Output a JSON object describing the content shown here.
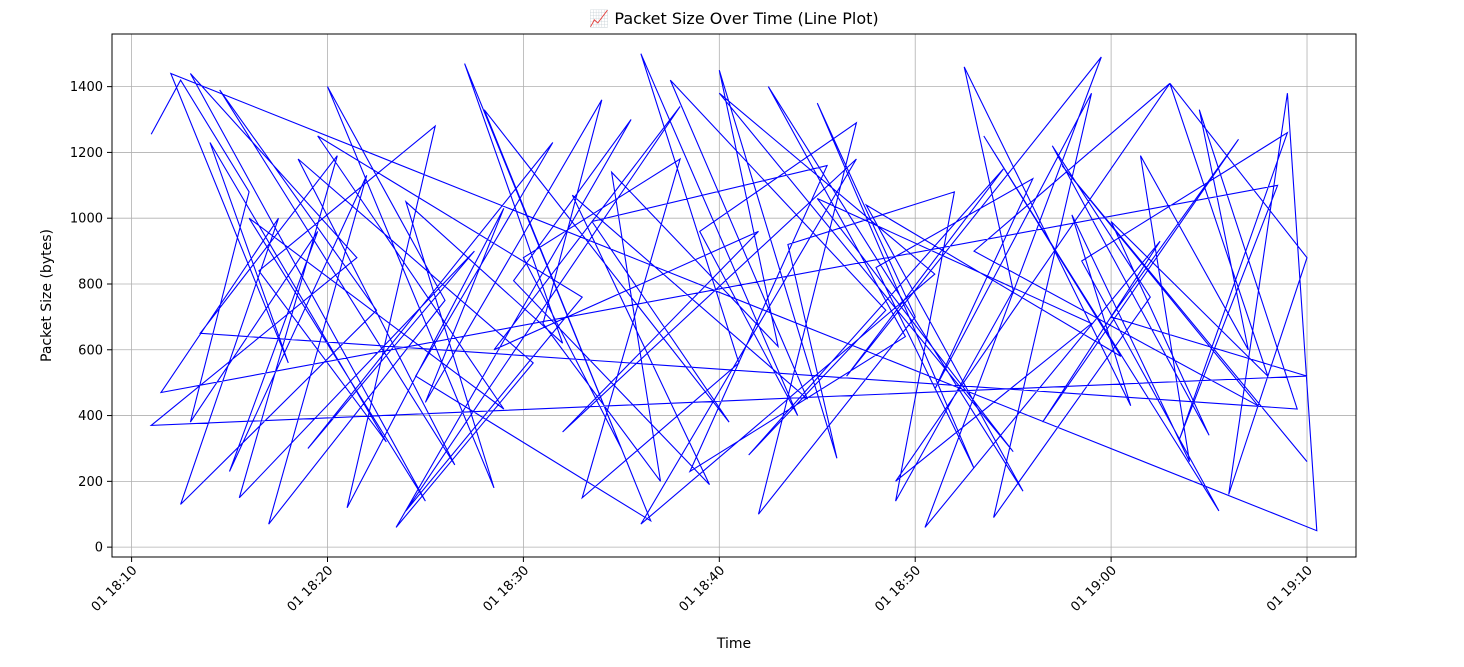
{
  "chart_data": {
    "type": "line",
    "title": "📈 Packet Size Over Time (Line Plot)",
    "xlabel": "Time",
    "ylabel": "Packet Size (bytes)",
    "ylim": [
      -30,
      1560
    ],
    "xlim": [
      "2024-01-01T18:09:00",
      "2024-01-01T19:12:30"
    ],
    "x_tick_labels": [
      "01 18:10",
      "01 18:20",
      "01 18:30",
      "01 18:40",
      "01 18:50",
      "01 19:00",
      "01 19:10"
    ],
    "y_ticks": [
      0,
      200,
      400,
      600,
      800,
      1000,
      1200,
      1400
    ],
    "grid": true,
    "series": [
      {
        "color": "#0000ff",
        "points": [
          [
            "18:11:00",
            1255
          ],
          [
            "18:12:30",
            1420
          ],
          [
            "18:16:00",
            1080
          ],
          [
            "18:13:00",
            380
          ],
          [
            "18:19:30",
            960
          ],
          [
            "18:15:00",
            230
          ],
          [
            "18:22:00",
            1130
          ],
          [
            "18:17:00",
            70
          ],
          [
            "18:26:00",
            750
          ],
          [
            "18:20:00",
            1400
          ],
          [
            "18:28:30",
            180
          ],
          [
            "18:24:00",
            1050
          ],
          [
            "18:32:00",
            620
          ],
          [
            "18:27:00",
            1470
          ],
          [
            "18:35:00",
            300
          ],
          [
            "18:30:00",
            880
          ],
          [
            "18:38:00",
            1180
          ],
          [
            "18:33:00",
            150
          ],
          [
            "18:41:00",
            560
          ],
          [
            "18:36:00",
            1500
          ],
          [
            "18:44:00",
            400
          ],
          [
            "18:39:00",
            960
          ],
          [
            "18:47:00",
            1290
          ],
          [
            "18:42:00",
            100
          ],
          [
            "18:50:00",
            700
          ],
          [
            "18:45:00",
            1350
          ],
          [
            "18:53:00",
            240
          ],
          [
            "18:48:00",
            850
          ],
          [
            "18:56:00",
            1120
          ],
          [
            "18:51:00",
            480
          ],
          [
            "18:59:00",
            1380
          ],
          [
            "18:54:00",
            90
          ],
          [
            "19:02:00",
            760
          ],
          [
            "18:57:00",
            1220
          ],
          [
            "19:05:00",
            340
          ],
          [
            "19:00:00",
            990
          ],
          [
            "19:08:00",
            520
          ],
          [
            "19:03:00",
            1410
          ],
          [
            "19:10:00",
            880
          ],
          [
            "19:06:00",
            160
          ],
          [
            "19:09:00",
            1380
          ],
          [
            "19:10:30",
            50
          ],
          [
            "18:12:00",
            1440
          ],
          [
            "18:18:00",
            560
          ],
          [
            "18:14:00",
            1230
          ],
          [
            "18:23:00",
            320
          ],
          [
            "18:16:30",
            840
          ],
          [
            "18:25:30",
            1280
          ],
          [
            "18:21:00",
            120
          ],
          [
            "18:29:00",
            1030
          ],
          [
            "18:25:00",
            440
          ],
          [
            "18:34:00",
            1360
          ],
          [
            "18:31:00",
            680
          ],
          [
            "18:37:00",
            200
          ],
          [
            "18:34:30",
            1140
          ],
          [
            "18:43:00",
            610
          ],
          [
            "18:40:00",
            1450
          ],
          [
            "18:46:00",
            270
          ],
          [
            "18:43:30",
            920
          ],
          [
            "18:52:00",
            1080
          ],
          [
            "18:49:00",
            140
          ],
          [
            "18:55:00",
            780
          ],
          [
            "18:52:30",
            1460
          ],
          [
            "19:01:00",
            430
          ],
          [
            "18:58:00",
            1010
          ],
          [
            "19:04:00",
            260
          ],
          [
            "19:01:30",
            1190
          ],
          [
            "19:07:00",
            600
          ],
          [
            "19:04:30",
            1330
          ],
          [
            "19:09:30",
            420
          ],
          [
            "18:13:30",
            650
          ],
          [
            "18:20:30",
            1190
          ],
          [
            "18:15:30",
            150
          ],
          [
            "18:27:30",
            900
          ],
          [
            "18:19:00",
            300
          ],
          [
            "18:31:30",
            1230
          ],
          [
            "18:24:30",
            520
          ],
          [
            "18:36:30",
            80
          ],
          [
            "18:28:00",
            1330
          ],
          [
            "18:40:30",
            380
          ],
          [
            "18:33:30",
            990
          ],
          [
            "18:45:30",
            1160
          ],
          [
            "18:38:30",
            230
          ],
          [
            "18:49:30",
            640
          ],
          [
            "18:42:30",
            1400
          ],
          [
            "18:55:30",
            170
          ],
          [
            "18:47:30",
            1040
          ],
          [
            "19:00:30",
            580
          ],
          [
            "18:53:30",
            1250
          ],
          [
            "19:05:30",
            110
          ],
          [
            "18:58:30",
            870
          ],
          [
            "19:09:00",
            1260
          ],
          [
            "19:03:30",
            330
          ],
          [
            "19:08:30",
            1100
          ],
          [
            "18:11:30",
            470
          ],
          [
            "18:17:30",
            1000
          ],
          [
            "18:12:30",
            130
          ],
          [
            "18:22:30",
            720
          ],
          [
            "18:14:30",
            1390
          ],
          [
            "18:26:30",
            250
          ],
          [
            "18:18:30",
            1180
          ],
          [
            "18:30:30",
            560
          ],
          [
            "18:23:30",
            60
          ],
          [
            "18:35:30",
            1300
          ],
          [
            "18:29:30",
            810
          ],
          [
            "18:39:30",
            190
          ],
          [
            "18:32:30",
            1070
          ],
          [
            "18:44:30",
            450
          ],
          [
            "18:37:30",
            1420
          ],
          [
            "18:48:30",
            720
          ],
          [
            "18:41:30",
            280
          ],
          [
            "18:54:30",
            1150
          ],
          [
            "18:46:30",
            520
          ],
          [
            "18:59:30",
            1490
          ],
          [
            "18:50:30",
            60
          ],
          [
            "19:02:30",
            930
          ],
          [
            "18:56:30",
            380
          ],
          [
            "19:06:30",
            1240
          ],
          [
            "19:00:00",
            700
          ],
          [
            "19:10:00",
            520
          ],
          [
            "18:11:00",
            370
          ],
          [
            "18:21:30",
            880
          ],
          [
            "18:13:00",
            1440
          ],
          [
            "18:25:00",
            140
          ],
          [
            "18:16:00",
            1000
          ],
          [
            "18:29:00",
            420
          ],
          [
            "18:19:30",
            1250
          ],
          [
            "18:33:00",
            760
          ],
          [
            "18:24:00",
            110
          ],
          [
            "18:38:00",
            1340
          ],
          [
            "18:28:30",
            600
          ],
          [
            "18:42:00",
            960
          ],
          [
            "18:32:00",
            350
          ],
          [
            "18:47:00",
            1180
          ],
          [
            "18:36:00",
            70
          ],
          [
            "18:51:00",
            830
          ],
          [
            "18:40:00",
            1380
          ],
          [
            "18:55:00",
            290
          ],
          [
            "18:45:00",
            1060
          ],
          [
            "18:59:00",
            680
          ],
          [
            "18:49:00",
            200
          ],
          [
            "19:03:00",
            1410
          ],
          [
            "18:53:00",
            900
          ],
          [
            "19:07:30",
            430
          ],
          [
            "18:57:30",
            1160
          ],
          [
            "19:10:00",
            260
          ]
        ]
      }
    ]
  }
}
